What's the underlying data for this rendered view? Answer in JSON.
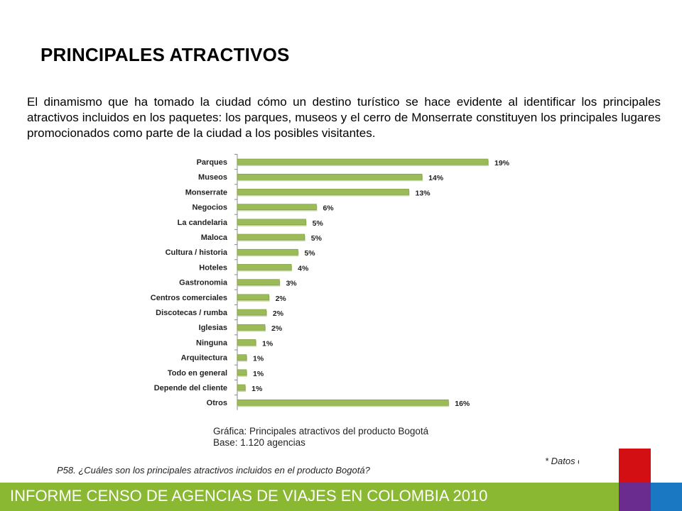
{
  "page": {
    "title": "PRINCIPALES ATRACTIVOS",
    "intro": "El dinamismo que ha tomado la ciudad cómo un destino turístico se hace evidente al identificar los principales atractivos incluidos en los paquetes: los parques, museos y el cerro de Monserrate constituyen los principales lugares promocionados como parte de la ciudad a los posibles visitantes.",
    "caption_line1": "Gráfica: Principales atractivos del producto Bogotá",
    "caption_line2": "Base: 1.120 agencias",
    "note_datos": "* Datos en %",
    "question": "P58. ¿Cuáles son los principales atractivos incluidos en el producto  Bogotá?",
    "footer": "INFORME CENSO DE AGENCIAS DE VIAJES EN COLOMBIA 2010"
  },
  "colors": {
    "bar": "#9bbb59",
    "bar_dark": "#7a9a3c",
    "footer_green": "#8ab832",
    "red": "#d40f14",
    "purple": "#6a2c8e",
    "blue": "#1a78c2"
  },
  "chart_data": {
    "type": "bar",
    "orientation": "horizontal",
    "title": "",
    "xlabel": "",
    "ylabel": "",
    "value_suffix": "%",
    "xlim": [
      0,
      19
    ],
    "grid": false,
    "categories": [
      "Parques",
      "Museos",
      "Monserrate",
      "Negocios",
      "La candelaria",
      "Maloca",
      "Cultura / historia",
      "Hoteles",
      "Gastronomia",
      "Centros comerciales",
      "Discotecas / rumba",
      "Iglesias",
      "Ninguna",
      "Arquitectura",
      "Todo en general",
      "Depende del cliente",
      "Otros"
    ],
    "bar_values": [
      19,
      14,
      13,
      6,
      5.2,
      5.1,
      4.6,
      4.1,
      3.2,
      2.4,
      2.2,
      2.1,
      1.4,
      0.7,
      0.7,
      0.6,
      16
    ],
    "labels": [
      "19%",
      "14%",
      "13%",
      "6%",
      "5%",
      "5%",
      "5%",
      "4%",
      "3%",
      "2%",
      "2%",
      "2%",
      "1%",
      "1%",
      "1%",
      "1%",
      "16%"
    ]
  }
}
